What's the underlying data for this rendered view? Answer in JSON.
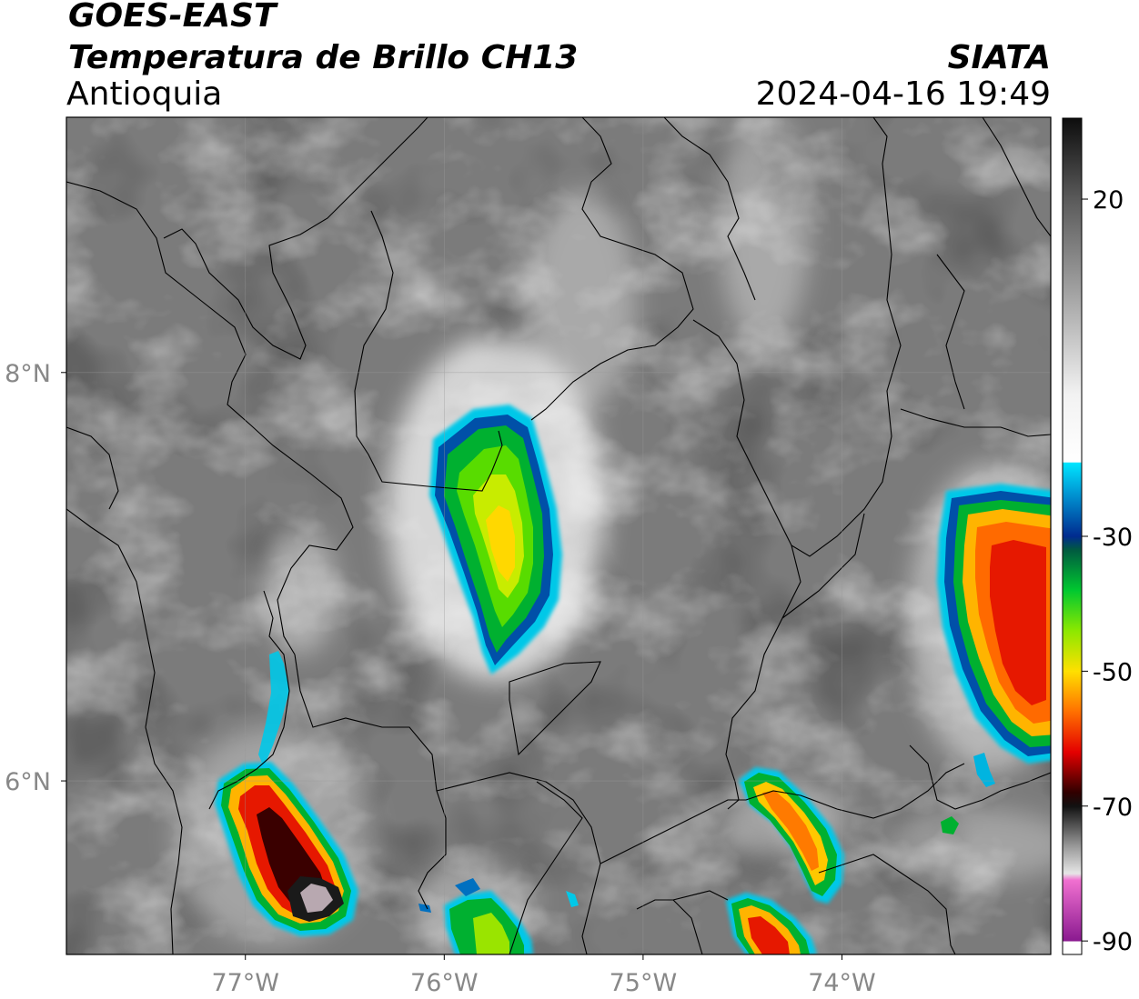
{
  "header": {
    "satellite": "GOES-EAST",
    "product": "Temperatura de Brillo CH13",
    "region": "Antioquia",
    "agency": "SIATA",
    "timestamp": "2024-04-16 19:49"
  },
  "map": {
    "lon_range": [
      -77.9,
      -72.95
    ],
    "lat_range": [
      5.15,
      9.25
    ],
    "lat_ticks": [
      {
        "value": 8,
        "label": "8°N"
      },
      {
        "value": 6,
        "label": "6°N"
      }
    ],
    "lon_ticks": [
      {
        "value": -77,
        "label": "77°W"
      },
      {
        "value": -76,
        "label": "76°W"
      },
      {
        "value": -75,
        "label": "75°W"
      },
      {
        "value": -74,
        "label": "74°W"
      }
    ],
    "gridlines": true
  },
  "colorbar": {
    "range": [
      -92,
      32
    ],
    "ticks": [
      {
        "value": 20,
        "label": "20"
      },
      {
        "value": -30,
        "label": "-30"
      },
      {
        "value": -50,
        "label": "-50"
      },
      {
        "value": -70,
        "label": "-70"
      },
      {
        "value": -90,
        "label": "-90"
      }
    ],
    "stops": [
      {
        "value": 32,
        "color": "#0d0d0d"
      },
      {
        "value": 20,
        "color": "#5a5a5a"
      },
      {
        "value": 5,
        "color": "#a8a8a8"
      },
      {
        "value": -9,
        "color": "#f2f2f2"
      },
      {
        "value": -19,
        "color": "#ffffff"
      },
      {
        "value": -19.1,
        "color": "#00e5ff"
      },
      {
        "value": -24,
        "color": "#0090d0"
      },
      {
        "value": -30,
        "color": "#002b8f"
      },
      {
        "value": -32,
        "color": "#005a40"
      },
      {
        "value": -38,
        "color": "#00c830"
      },
      {
        "value": -44,
        "color": "#8ce800"
      },
      {
        "value": -50,
        "color": "#ffe000"
      },
      {
        "value": -56,
        "color": "#ff7000"
      },
      {
        "value": -62,
        "color": "#e40000"
      },
      {
        "value": -68,
        "color": "#300000"
      },
      {
        "value": -70,
        "color": "#111111"
      },
      {
        "value": -76,
        "color": "#9a9a9a"
      },
      {
        "value": -80,
        "color": "#e6e6e6"
      },
      {
        "value": -81,
        "color": "#f070d0"
      },
      {
        "value": -90,
        "color": "#8a1a90"
      },
      {
        "value": -90.1,
        "color": "#ffffff"
      }
    ]
  }
}
